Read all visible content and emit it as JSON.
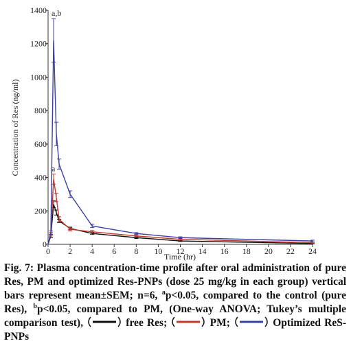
{
  "chart_data": {
    "type": "line",
    "ylabel": "Concentration of Res (ng/ml)",
    "xlabel": "Time (hr)",
    "x": [
      0,
      0.25,
      0.5,
      0.75,
      1,
      2,
      4,
      8,
      12,
      24
    ],
    "series": [
      {
        "name": "free Res",
        "color": "#111111",
        "values": [
          0,
          50,
          240,
          190,
          140,
          95,
          65,
          40,
          20,
          5
        ],
        "errors": [
          0,
          10,
          20,
          15,
          10,
          8,
          5,
          5,
          3,
          2
        ]
      },
      {
        "name": "PM",
        "color": "#c0392b",
        "values": [
          0,
          60,
          390,
          280,
          150,
          90,
          75,
          50,
          30,
          10
        ],
        "errors": [
          0,
          10,
          30,
          25,
          15,
          10,
          8,
          5,
          5,
          3
        ]
      },
      {
        "name": "Optimized ReS-PNPs",
        "color": "#3b3fa0",
        "values": [
          0,
          70,
          1220,
          660,
          480,
          300,
          110,
          65,
          40,
          20
        ],
        "errors": [
          0,
          10,
          130,
          70,
          30,
          20,
          10,
          5,
          5,
          5
        ]
      }
    ],
    "annotations": [
      "a",
      "a,b"
    ],
    "xlim": [
      0,
      24
    ],
    "xticks": [
      0,
      2,
      4,
      6,
      8,
      10,
      12,
      14,
      16,
      18,
      20,
      22,
      24
    ],
    "ylim": [
      0,
      1400
    ],
    "yticks": [
      0,
      200,
      400,
      600,
      800,
      1000,
      1200,
      1400
    ]
  },
  "caption": {
    "part_1": "Fig. 7: Plasma concentration-time profile after oral administration of pure Res, PM and optimized Res-PNPs (dose 25 mg/kg in each group) vertical bars represent mean±SEM; n=6,",
    "sup_a": "a",
    "part_2": "p<0.05, compared to the control (pure Res),",
    "sup_b": "b",
    "part_3": "p<0.05, compared to PM, (One-way ANOVA; Tukey’s multiple comparison test),",
    "separator": ";"
  }
}
